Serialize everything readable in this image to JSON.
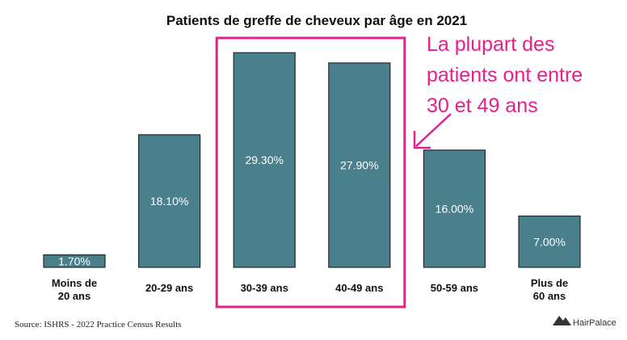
{
  "chart_data": {
    "type": "bar",
    "title": "Patients de greffe de cheveux par âge en 2021",
    "categories": [
      [
        "Moins de",
        "20 ans"
      ],
      [
        "20-29 ans"
      ],
      [
        "30-39 ans"
      ],
      [
        "40-49 ans"
      ],
      [
        "50-59 ans"
      ],
      [
        "Plus de",
        "60 ans"
      ]
    ],
    "values": [
      1.7,
      18.1,
      29.3,
      27.9,
      16.0,
      7.0
    ],
    "value_labels": [
      "1.70%",
      "18.10%",
      "29.30%",
      "27.90%",
      "16.00%",
      "7.00%"
    ],
    "ylim": [
      0,
      30
    ],
    "bar_color": "#4a7f8c",
    "highlight": {
      "categories": [
        "30-39 ans",
        "40-49 ans"
      ],
      "color": "#e4208c"
    },
    "annotation": {
      "lines": [
        "La plupart des",
        "patients ont entre",
        "30 et 49 ans"
      ],
      "color": "#e4208c"
    },
    "source": "Source: ISHRS - 2022 Practice Census Results",
    "brand": "HairPalace"
  }
}
